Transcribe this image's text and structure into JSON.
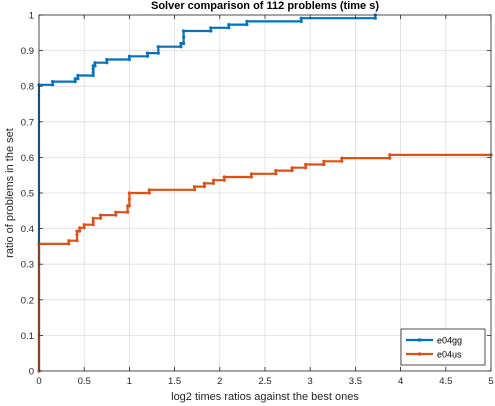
{
  "chart_data": {
    "type": "line",
    "step": true,
    "title": "Solver comparison of 112 problems (time s)",
    "xlabel": "log2 times ratios against the best ones",
    "ylabel": "ratio of problems in the set",
    "xlim": [
      0,
      5
    ],
    "ylim": [
      0,
      1
    ],
    "xticks": [
      "0",
      "0.5",
      "1",
      "1.5",
      "2",
      "2.5",
      "3",
      "3.5",
      "4",
      "4.5",
      "5"
    ],
    "yticks": [
      "0",
      "0.1",
      "0.2",
      "0.3",
      "0.4",
      "0.5",
      "0.6",
      "0.7",
      "0.8",
      "0.9",
      "1"
    ],
    "grid": true,
    "legend_position": "bottom-right",
    "series": [
      {
        "name": "e04gg",
        "color": "#0072BD",
        "points": [
          [
            0,
            0
          ],
          [
            0,
            0.804
          ],
          [
            0.15,
            0.804
          ],
          [
            0.15,
            0.813
          ],
          [
            0.4,
            0.813
          ],
          [
            0.4,
            0.821
          ],
          [
            0.43,
            0.821
          ],
          [
            0.43,
            0.83
          ],
          [
            0.6,
            0.83
          ],
          [
            0.6,
            0.839
          ],
          [
            0.6,
            0.848
          ],
          [
            0.6,
            0.857
          ],
          [
            0.62,
            0.857
          ],
          [
            0.62,
            0.866
          ],
          [
            0.75,
            0.866
          ],
          [
            0.75,
            0.875
          ],
          [
            1.0,
            0.875
          ],
          [
            1.0,
            0.884
          ],
          [
            1.2,
            0.884
          ],
          [
            1.2,
            0.893
          ],
          [
            1.32,
            0.893
          ],
          [
            1.32,
            0.911
          ],
          [
            1.57,
            0.911
          ],
          [
            1.57,
            0.92
          ],
          [
            1.6,
            0.92
          ],
          [
            1.6,
            0.938
          ],
          [
            1.6,
            0.955
          ],
          [
            1.9,
            0.955
          ],
          [
            1.9,
            0.964
          ],
          [
            2.1,
            0.964
          ],
          [
            2.1,
            0.973
          ],
          [
            2.3,
            0.973
          ],
          [
            2.3,
            0.982
          ],
          [
            2.9,
            0.982
          ],
          [
            2.9,
            0.991
          ],
          [
            3.72,
            0.991
          ],
          [
            3.72,
            1.0
          ]
        ]
      },
      {
        "name": "e04us",
        "color": "#D95319",
        "points": [
          [
            0,
            0
          ],
          [
            0,
            0.357
          ],
          [
            0.33,
            0.357
          ],
          [
            0.33,
            0.366
          ],
          [
            0.42,
            0.366
          ],
          [
            0.42,
            0.384
          ],
          [
            0.42,
            0.393
          ],
          [
            0.45,
            0.393
          ],
          [
            0.45,
            0.402
          ],
          [
            0.5,
            0.402
          ],
          [
            0.5,
            0.411
          ],
          [
            0.6,
            0.411
          ],
          [
            0.6,
            0.42
          ],
          [
            0.6,
            0.429
          ],
          [
            0.68,
            0.429
          ],
          [
            0.68,
            0.438
          ],
          [
            0.85,
            0.438
          ],
          [
            0.85,
            0.446
          ],
          [
            0.98,
            0.446
          ],
          [
            0.98,
            0.464
          ],
          [
            1.0,
            0.464
          ],
          [
            1.0,
            0.482
          ],
          [
            1.0,
            0.5
          ],
          [
            1.22,
            0.5
          ],
          [
            1.22,
            0.509
          ],
          [
            1.72,
            0.509
          ],
          [
            1.72,
            0.518
          ],
          [
            1.83,
            0.518
          ],
          [
            1.83,
            0.527
          ],
          [
            1.93,
            0.527
          ],
          [
            1.93,
            0.536
          ],
          [
            2.05,
            0.536
          ],
          [
            2.05,
            0.545
          ],
          [
            2.35,
            0.545
          ],
          [
            2.35,
            0.554
          ],
          [
            2.62,
            0.554
          ],
          [
            2.62,
            0.563
          ],
          [
            2.8,
            0.563
          ],
          [
            2.8,
            0.571
          ],
          [
            2.95,
            0.571
          ],
          [
            2.95,
            0.58
          ],
          [
            3.15,
            0.58
          ],
          [
            3.15,
            0.589
          ],
          [
            3.35,
            0.589
          ],
          [
            3.35,
            0.598
          ],
          [
            3.88,
            0.598
          ],
          [
            3.88,
            0.607
          ],
          [
            5.0,
            0.607
          ]
        ]
      }
    ]
  }
}
